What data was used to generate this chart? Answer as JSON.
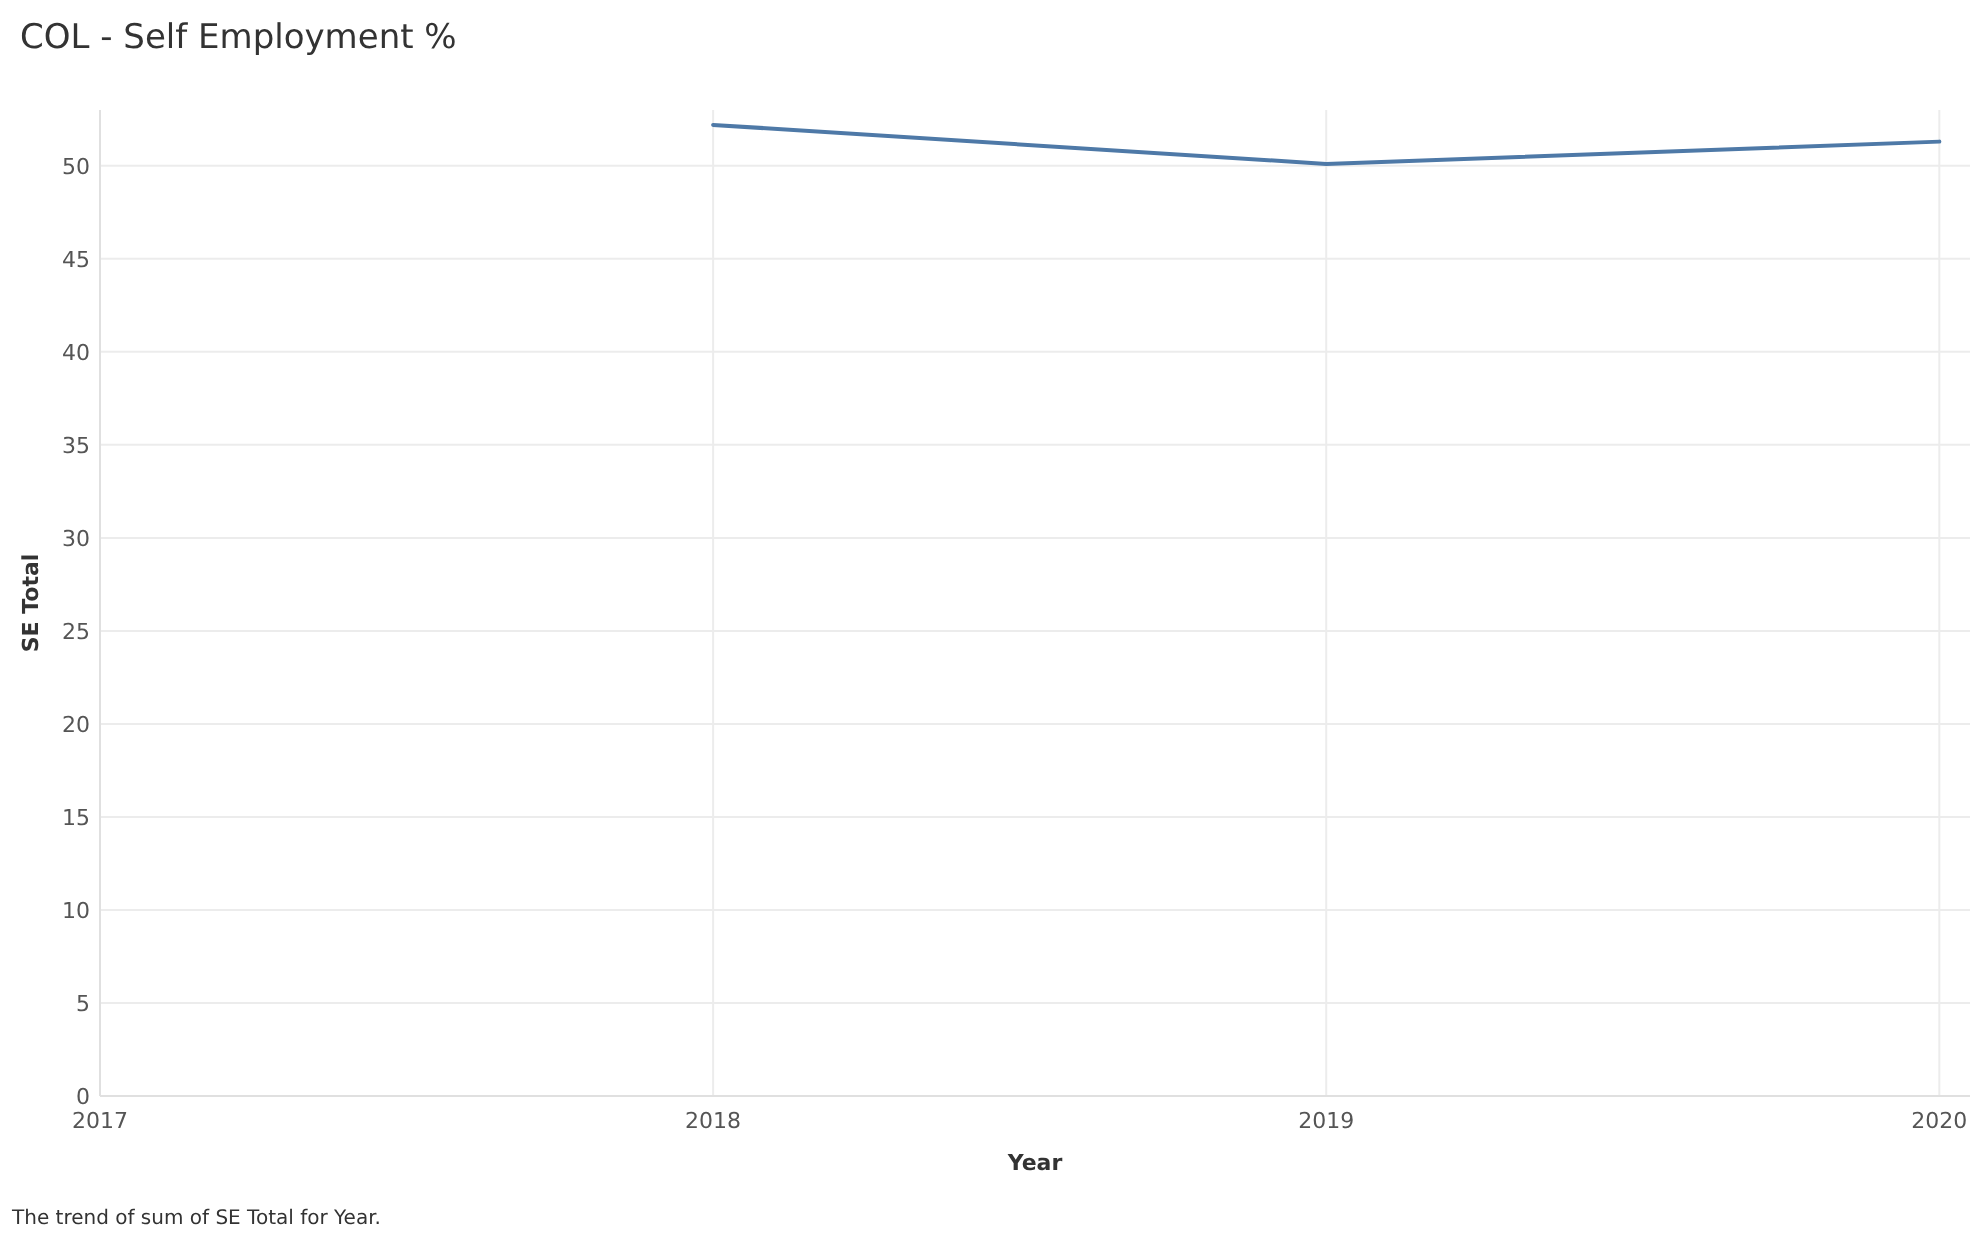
{
  "chart_data": {
    "type": "line",
    "title": "COL - Self Employment %",
    "xlabel": "Year",
    "ylabel": "SE Total",
    "x": [
      2018,
      2019,
      2020
    ],
    "series": [
      {
        "color": "#4e79a7",
        "values": [
          52.2,
          50.1,
          51.3
        ]
      }
    ],
    "xlim": [
      2017,
      2020.05
    ],
    "xticks": [
      2017,
      2018,
      2019,
      2020
    ],
    "ylim": [
      0,
      53
    ],
    "yticks": [
      0,
      5,
      10,
      15,
      20,
      25,
      30,
      35,
      40,
      45,
      50
    ],
    "grid": true,
    "marker": "none",
    "line_style": "solid",
    "annotations": [
      "The trend of sum of SE Total for Year."
    ]
  }
}
